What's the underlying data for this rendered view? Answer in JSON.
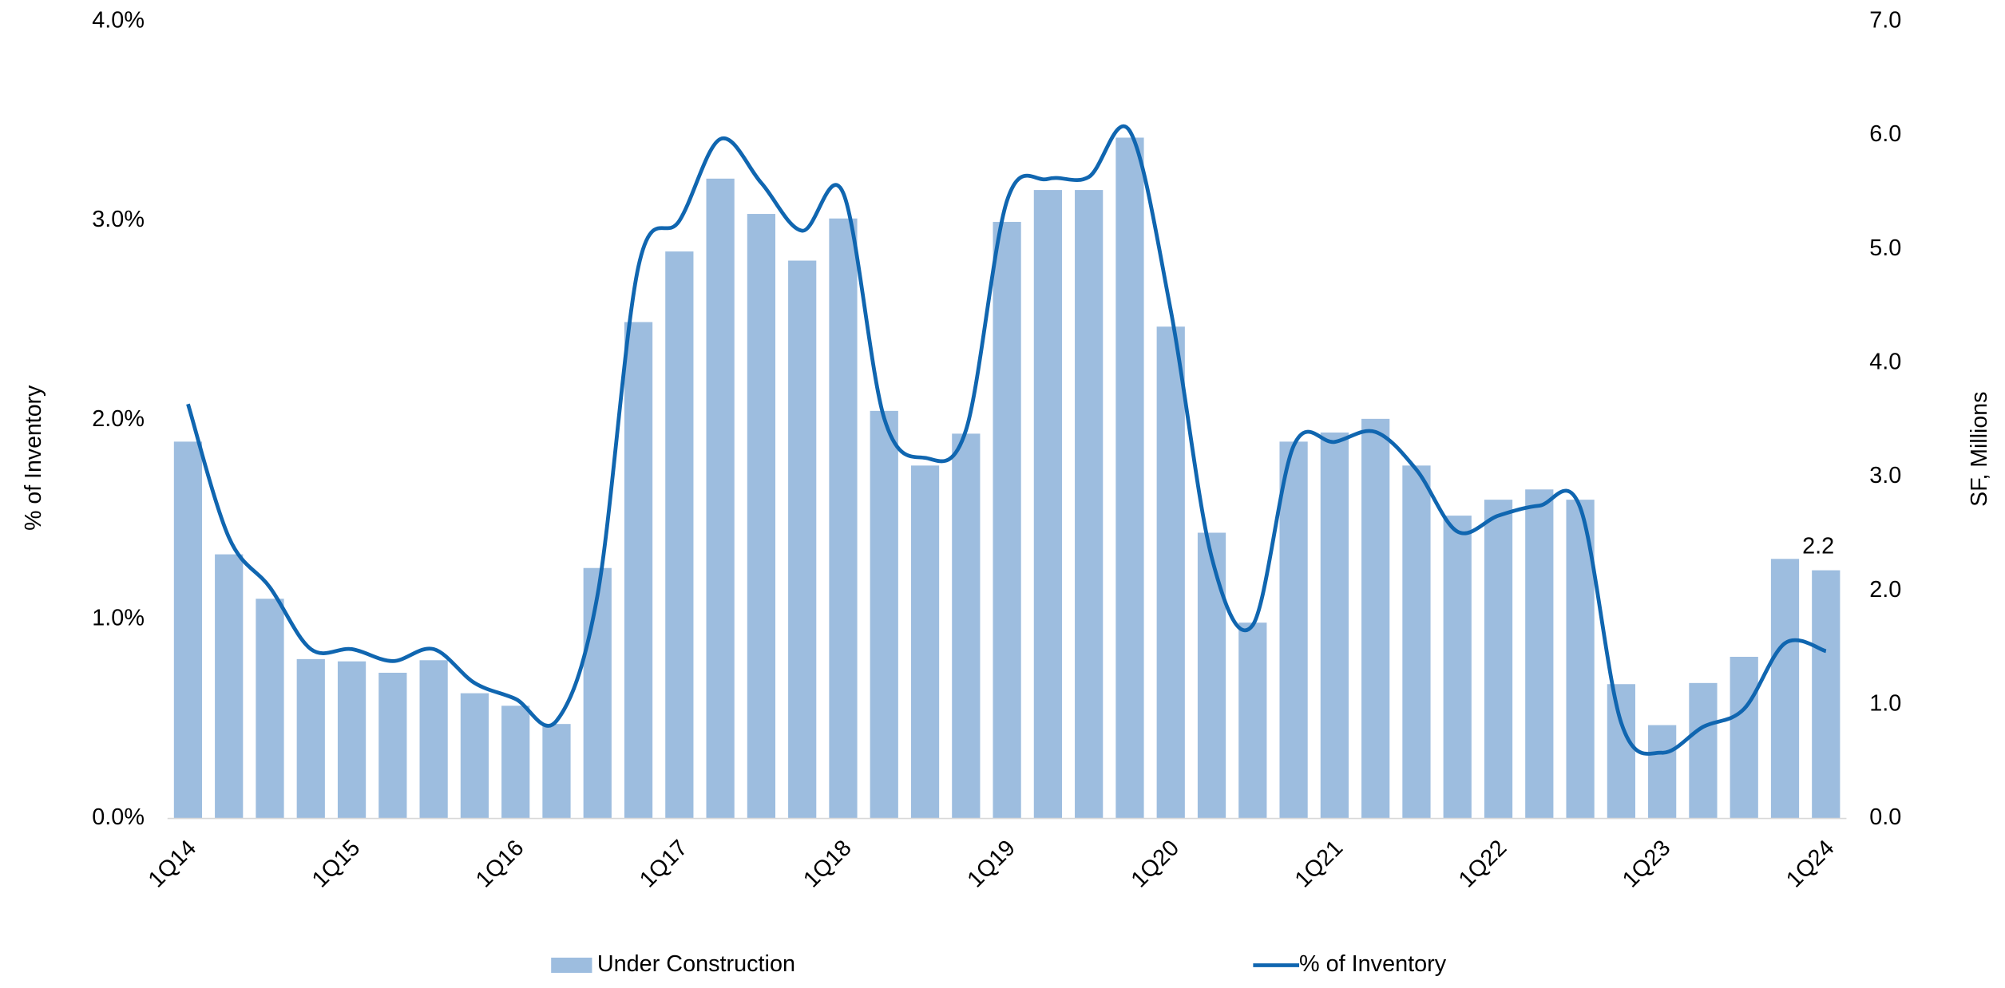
{
  "chart_data": {
    "type": "bar-line",
    "y_label": "% of Inventory",
    "y2_label": "SF, Millions",
    "categories": [
      "1Q14",
      null,
      null,
      null,
      "1Q15",
      null,
      null,
      null,
      "1Q16",
      null,
      null,
      null,
      "1Q17",
      null,
      null,
      null,
      "1Q18",
      null,
      null,
      null,
      "1Q19",
      null,
      null,
      null,
      "1Q20",
      null,
      null,
      null,
      "1Q21",
      null,
      null,
      null,
      "1Q22",
      null,
      null,
      null,
      "1Q23",
      null,
      null,
      null,
      "1Q24"
    ],
    "series": [
      {
        "name": "Under Construction",
        "type": "bar",
        "axis": "y2",
        "color": "#9dbddf",
        "values": [
          3.31,
          2.32,
          1.93,
          1.4,
          1.38,
          1.28,
          1.39,
          1.1,
          0.99,
          0.83,
          2.2,
          4.36,
          4.98,
          5.62,
          5.31,
          4.9,
          5.27,
          3.58,
          3.1,
          3.38,
          5.24,
          5.52,
          5.52,
          5.98,
          4.32,
          2.51,
          1.72,
          3.31,
          3.39,
          3.51,
          3.1,
          2.66,
          2.8,
          2.89,
          2.8,
          1.18,
          0.82,
          1.19,
          1.42,
          2.28,
          2.18
        ],
        "value_labels": [
          null,
          null,
          null,
          null,
          null,
          null,
          null,
          null,
          null,
          null,
          null,
          null,
          null,
          null,
          null,
          null,
          null,
          null,
          null,
          null,
          null,
          null,
          null,
          null,
          null,
          null,
          null,
          null,
          null,
          null,
          null,
          null,
          null,
          null,
          null,
          null,
          null,
          null,
          null,
          null,
          "2.2"
        ]
      },
      {
        "name": "% of Inventory",
        "type": "line",
        "axis": "y",
        "color": "#1066b0",
        "values": [
          2.08,
          1.41,
          1.16,
          0.85,
          0.85,
          0.79,
          0.85,
          0.68,
          0.6,
          0.49,
          1.12,
          2.77,
          3.0,
          3.41,
          3.19,
          2.95,
          3.14,
          2.01,
          1.81,
          1.95,
          3.1,
          3.21,
          3.22,
          3.45,
          2.55,
          1.31,
          0.97,
          1.87,
          1.89,
          1.94,
          1.75,
          1.44,
          1.52,
          1.57,
          1.56,
          0.48,
          0.33,
          0.46,
          0.55,
          0.88,
          0.84
        ]
      }
    ],
    "ylim": [
      0,
      4
    ],
    "yticks": [
      {
        "value": 0,
        "label": "0.0%"
      },
      {
        "value": 1,
        "label": "1.0%"
      },
      {
        "value": 2,
        "label": "2.0%"
      },
      {
        "value": 3,
        "label": "3.0%"
      },
      {
        "value": 4,
        "label": "4.0%"
      }
    ],
    "y2lim": [
      0,
      7
    ],
    "y2ticks": [
      {
        "value": 0,
        "label": "0.0"
      },
      {
        "value": 1,
        "label": "1.0"
      },
      {
        "value": 2,
        "label": "2.0"
      },
      {
        "value": 3,
        "label": "3.0"
      },
      {
        "value": 4,
        "label": "4.0"
      },
      {
        "value": 5,
        "label": "5.0"
      },
      {
        "value": 6,
        "label": "6.0"
      },
      {
        "value": 7,
        "label": "7.0"
      }
    ],
    "legend": "bottom"
  }
}
